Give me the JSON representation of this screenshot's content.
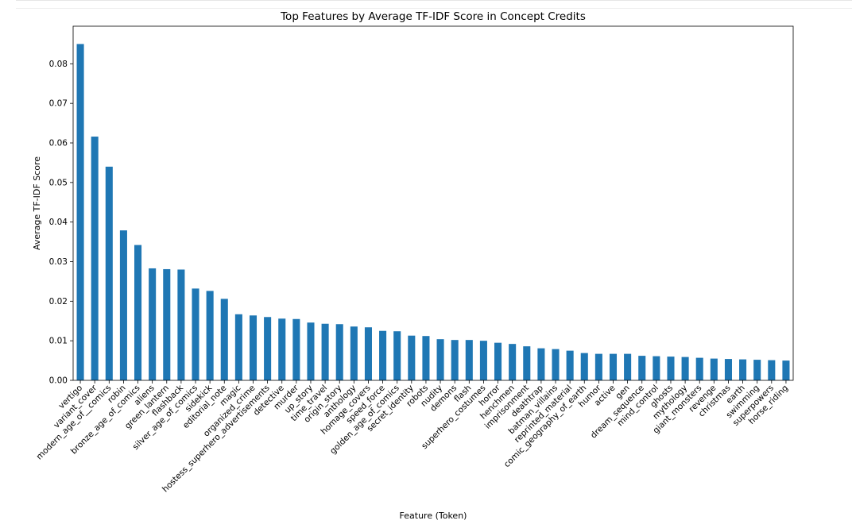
{
  "chart_data": {
    "type": "bar",
    "title": "Top Features by Average TF-IDF Score in Concept Credits",
    "xlabel": "Feature (Token)",
    "ylabel": "Average TF-IDF Score",
    "ylim": [
      0,
      0.0895
    ],
    "yticks": [
      0.0,
      0.01,
      0.02,
      0.03,
      0.04,
      0.05,
      0.06,
      0.07,
      0.08
    ],
    "ytick_labels": [
      "0.00",
      "0.01",
      "0.02",
      "0.03",
      "0.04",
      "0.05",
      "0.06",
      "0.07",
      "0.08"
    ],
    "grid": false,
    "bar_color": "#1f77b4",
    "categories": [
      "vertigo",
      "variant_cover",
      "modern_age_of__comics",
      "robin",
      "bronze_age_of_comics",
      "aliens",
      "green_lantern",
      "flashback",
      "silver_age_of_comics",
      "sidekick",
      "editorial_note",
      "magic",
      "organized_crime",
      "hostess_superhero_advertisements",
      "detective",
      "murder",
      "up_story",
      "time_travel",
      "origin_story",
      "anthology",
      "homage_covers",
      "speed_force",
      "golden_age_of_comics",
      "secret_identity",
      "robots",
      "nudity",
      "demons",
      "flash",
      "superhero_costumes",
      "horror",
      "henchmen",
      "imprisonment",
      "deathtrap",
      "batman_villains",
      "reprinted_material",
      "comic_geography_of_earth",
      "humor",
      "active",
      "gen",
      "dream_sequence",
      "mind_control",
      "ghosts",
      "mythology",
      "giant_monsters",
      "revenge",
      "christmas",
      "earth",
      "swimming",
      "superpowers",
      "horse_riding"
    ],
    "values": [
      0.085,
      0.0616,
      0.054,
      0.0379,
      0.0342,
      0.0283,
      0.0281,
      0.028,
      0.0232,
      0.0226,
      0.0206,
      0.0167,
      0.0164,
      0.016,
      0.0156,
      0.0155,
      0.0146,
      0.0143,
      0.0142,
      0.0136,
      0.0134,
      0.0125,
      0.0124,
      0.0113,
      0.0112,
      0.0104,
      0.0102,
      0.0102,
      0.01,
      0.0095,
      0.0092,
      0.0086,
      0.0081,
      0.0079,
      0.0075,
      0.0069,
      0.0067,
      0.0067,
      0.0067,
      0.0062,
      0.0061,
      0.006,
      0.0059,
      0.0057,
      0.0055,
      0.0054,
      0.0053,
      0.0052,
      0.0051,
      0.005
    ]
  }
}
